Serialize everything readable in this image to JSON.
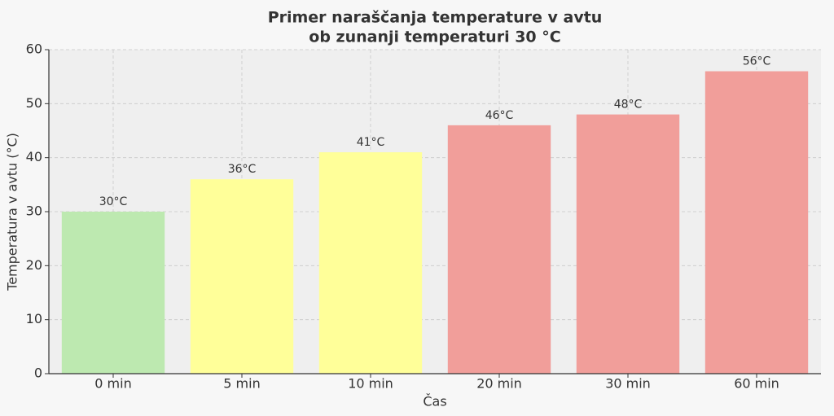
{
  "chart_data": {
    "type": "bar",
    "title": [
      "Primer naraščanja temperature v avtu",
      "ob zunanji temperaturi 30 °C"
    ],
    "xlabel": "Čas",
    "ylabel": "Temperatura v avtu (°C)",
    "categories": [
      "0 min",
      "5 min",
      "10 min",
      "20 min",
      "30 min",
      "60 min"
    ],
    "values": [
      30,
      36,
      41,
      46,
      48,
      56
    ],
    "value_labels": [
      "30°C",
      "36°C",
      "41°C",
      "46°C",
      "48°C",
      "56°C"
    ],
    "colors": [
      "#bde9b0",
      "#ffff99",
      "#ffff99",
      "#f19e9a",
      "#f19e9a",
      "#f19e9a"
    ],
    "ylim": [
      0,
      60
    ],
    "yticks": [
      0,
      10,
      20,
      30,
      40,
      50,
      60
    ],
    "grid": true
  }
}
